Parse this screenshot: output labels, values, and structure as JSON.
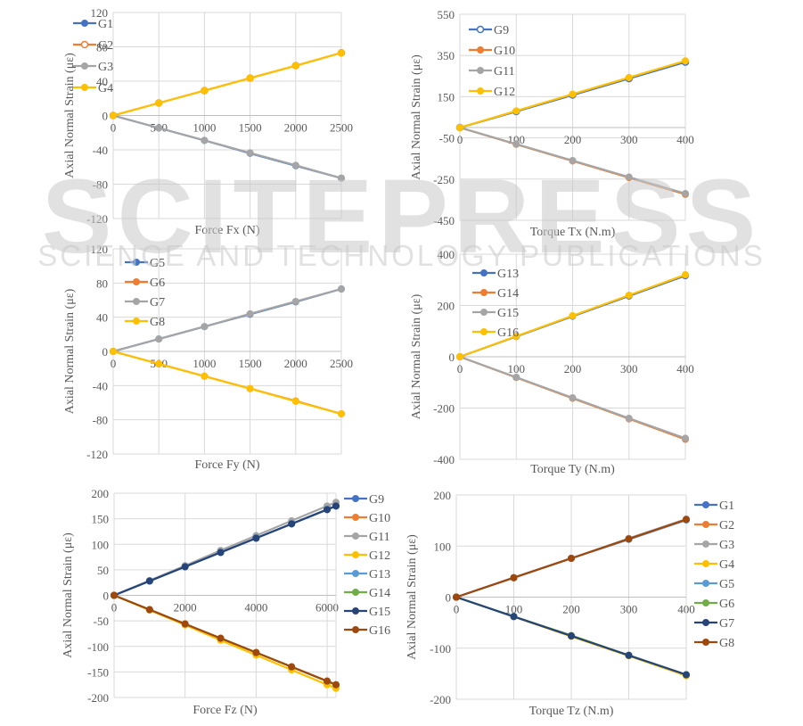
{
  "watermark": {
    "main": "SCITEPRESS",
    "sub": "SCIENCE AND TECHNOLOGY PUBLICATIONS"
  },
  "colors": {
    "blue": "#4472c4",
    "orange": "#ed7d31",
    "gray": "#a5a5a5",
    "yellow": "#ffc000",
    "lightblue": "#5b9bd5",
    "green": "#70ad47",
    "navy": "#264478",
    "brown": "#9e480e",
    "grid": "#d9d9d9"
  },
  "chart_data": [
    {
      "id": "fx",
      "type": "line",
      "xlabel": "Force Fx (N)",
      "ylabel": "Axial Normal Strain (με)",
      "xlim": [
        0,
        2500
      ],
      "ylim": [
        -120,
        120
      ],
      "x_ticks": [
        "0",
        "500",
        "1000",
        "1500",
        "2000",
        "2500"
      ],
      "x_tick_values": [
        0,
        500,
        1000,
        1500,
        2000,
        2500
      ],
      "y_ticks": [
        "120",
        "80",
        "40",
        "0",
        "-40",
        "-80",
        "-120"
      ],
      "y_tick_values": [
        120,
        80,
        40,
        0,
        -40,
        -80,
        -120
      ],
      "grid": true,
      "legend": "top-left-inside",
      "x": [
        0,
        500,
        1000,
        1500,
        2000,
        2500
      ],
      "series": [
        {
          "name": "G1",
          "color": "blue",
          "marker": "filled",
          "values": [
            0,
            -14.5,
            -29,
            -44,
            -58.5,
            -73
          ]
        },
        {
          "name": "G2",
          "color": "orange",
          "marker": "open",
          "values": [
            0,
            14.5,
            29,
            43.5,
            58,
            73
          ]
        },
        {
          "name": "G3",
          "color": "gray",
          "marker": "filled",
          "values": [
            0,
            -14.5,
            -29,
            -43.5,
            -58,
            -73
          ]
        },
        {
          "name": "G4",
          "color": "yellow",
          "marker": "filled",
          "values": [
            0,
            14.5,
            29,
            43.5,
            58,
            73
          ]
        }
      ]
    },
    {
      "id": "tx",
      "type": "line",
      "xlabel": "Torque Tx (N.m)",
      "ylabel": "Axial Normal Strain (με)",
      "xlim": [
        0,
        400
      ],
      "ylim": [
        -450,
        550
      ],
      "x_ticks": [
        "0",
        "100",
        "200",
        "300",
        "400"
      ],
      "x_tick_values": [
        0,
        100,
        200,
        300,
        400
      ],
      "y_ticks": [
        "550",
        "350",
        "150",
        "-50",
        "-250",
        "-450"
      ],
      "y_tick_values": [
        550,
        350,
        150,
        -50,
        -250,
        -450
      ],
      "grid": true,
      "legend": "top-left-inside",
      "x": [
        0,
        100,
        200,
        300,
        400
      ],
      "series": [
        {
          "name": "G9",
          "color": "blue",
          "marker": "open",
          "values": [
            0,
            78,
            158,
            238,
            318
          ]
        },
        {
          "name": "G10",
          "color": "orange",
          "marker": "filled",
          "values": [
            0,
            -81,
            -162,
            -243,
            -324
          ]
        },
        {
          "name": "G11",
          "color": "gray",
          "marker": "filled",
          "values": [
            0,
            -80,
            -160,
            -240,
            -320
          ]
        },
        {
          "name": "G12",
          "color": "yellow",
          "marker": "filled",
          "values": [
            0,
            81,
            162,
            243,
            324
          ]
        }
      ]
    },
    {
      "id": "fy",
      "type": "line",
      "xlabel": "Force Fy (N)",
      "ylabel": "Axial Normal Strain (με)",
      "xlim": [
        0,
        2500
      ],
      "ylim": [
        -120,
        120
      ],
      "x_ticks": [
        "0",
        "500",
        "1000",
        "1500",
        "2000",
        "2500"
      ],
      "x_tick_values": [
        0,
        500,
        1000,
        1500,
        2000,
        2500
      ],
      "y_ticks": [
        "120",
        "80",
        "40",
        "0",
        "-40",
        "-80",
        "-120"
      ],
      "y_tick_values": [
        120,
        80,
        40,
        0,
        -40,
        -80,
        -120
      ],
      "grid": true,
      "legend": "top-left-inside",
      "x": [
        0,
        500,
        1000,
        1500,
        2000,
        2500
      ],
      "series": [
        {
          "name": "G5",
          "color": "blue",
          "marker": "filled",
          "values": [
            0,
            14.5,
            29,
            43.5,
            58,
            73
          ]
        },
        {
          "name": "G6",
          "color": "orange",
          "marker": "filled",
          "values": [
            0,
            -14.5,
            -29,
            -43.5,
            -58,
            -73
          ]
        },
        {
          "name": "G7",
          "color": "gray",
          "marker": "filled",
          "values": [
            0,
            14.5,
            29,
            44,
            58.5,
            73
          ]
        },
        {
          "name": "G8",
          "color": "yellow",
          "marker": "filled",
          "values": [
            0,
            -14.5,
            -29,
            -43.5,
            -58.5,
            -73
          ]
        }
      ]
    },
    {
      "id": "ty",
      "type": "line",
      "xlabel": "Torque Ty (N.m)",
      "ylabel": "Axial Normal Strain (με)",
      "xlim": [
        0,
        400
      ],
      "ylim": [
        -400,
        400
      ],
      "x_ticks": [
        "0",
        "100",
        "200",
        "300",
        "400"
      ],
      "x_tick_values": [
        0,
        100,
        200,
        300,
        400
      ],
      "y_ticks": [
        "400",
        "200",
        "0",
        "-200",
        "-400"
      ],
      "y_tick_values": [
        400,
        200,
        0,
        -200,
        -400
      ],
      "grid": true,
      "legend": "top-left-inside",
      "x": [
        0,
        100,
        200,
        300,
        400
      ],
      "series": [
        {
          "name": "G13",
          "color": "blue",
          "marker": "filled",
          "values": [
            0,
            79,
            158,
            237,
            316
          ]
        },
        {
          "name": "G14",
          "color": "orange",
          "marker": "filled",
          "values": [
            0,
            -81,
            -162,
            -242,
            -322
          ]
        },
        {
          "name": "G15",
          "color": "gray",
          "marker": "filled",
          "values": [
            0,
            -80,
            -160,
            -240,
            -318
          ]
        },
        {
          "name": "G16",
          "color": "yellow",
          "marker": "filled",
          "values": [
            0,
            80,
            160,
            240,
            320
          ]
        }
      ]
    },
    {
      "id": "fz",
      "type": "line",
      "xlabel": "Force Fz (N)",
      "ylabel": "Axial Normal Strain (με)",
      "xlim": [
        0,
        6250
      ],
      "ylim": [
        -200,
        200
      ],
      "x_ticks": [
        "0",
        "2000",
        "4000",
        "6000"
      ],
      "x_tick_values": [
        0,
        2000,
        4000,
        6000
      ],
      "y_ticks": [
        "200",
        "150",
        "100",
        "50",
        "0",
        "-50",
        "-100",
        "-150",
        "-200"
      ],
      "y_tick_values": [
        200,
        150,
        100,
        50,
        0,
        -50,
        -100,
        -150,
        -200
      ],
      "grid": true,
      "legend": "right",
      "x": [
        0,
        1000,
        2000,
        3000,
        4000,
        5000,
        6000,
        6250
      ],
      "series": [
        {
          "name": "G9",
          "color": "blue",
          "marker": "filled",
          "values": [
            0,
            28,
            56,
            84,
            112,
            140,
            168,
            175
          ]
        },
        {
          "name": "G10",
          "color": "orange",
          "marker": "filled",
          "values": [
            0,
            -28,
            -56,
            -84,
            -112,
            -140,
            -168,
            -175
          ]
        },
        {
          "name": "G11",
          "color": "gray",
          "marker": "filled",
          "values": [
            0,
            29,
            58,
            88,
            117,
            146,
            175,
            182
          ]
        },
        {
          "name": "G12",
          "color": "yellow",
          "marker": "filled",
          "values": [
            0,
            -29,
            -58,
            -88,
            -117,
            -146,
            -175,
            -182
          ]
        },
        {
          "name": "G13",
          "color": "lightblue",
          "marker": "filled",
          "values": [
            0,
            28,
            56,
            84,
            112,
            140,
            168,
            175
          ]
        },
        {
          "name": "G14",
          "color": "green",
          "marker": "filled",
          "values": [
            0,
            -28,
            -56,
            -84,
            -112,
            -140,
            -168,
            -175
          ]
        },
        {
          "name": "G15",
          "color": "navy",
          "marker": "filled",
          "values": [
            0,
            28,
            56,
            84,
            112,
            140,
            168,
            175
          ]
        },
        {
          "name": "G16",
          "color": "brown",
          "marker": "filled",
          "values": [
            0,
            -28,
            -56,
            -84,
            -112,
            -140,
            -168,
            -175
          ]
        }
      ]
    },
    {
      "id": "tz",
      "type": "line",
      "xlabel": "Torque Tz (N.m)",
      "ylabel": "Axial Normal Strain (με)",
      "xlim": [
        0,
        400
      ],
      "ylim": [
        -200,
        200
      ],
      "x_ticks": [
        "0",
        "100",
        "200",
        "300",
        "400"
      ],
      "x_tick_values": [
        0,
        100,
        200,
        300,
        400
      ],
      "y_ticks": [
        "200",
        "100",
        "0",
        "-100",
        "-200"
      ],
      "y_tick_values": [
        200,
        100,
        0,
        -100,
        -200
      ],
      "grid": true,
      "legend": "right",
      "x": [
        0,
        100,
        200,
        300,
        400
      ],
      "series": [
        {
          "name": "G1",
          "color": "blue",
          "marker": "filled",
          "values": [
            0,
            -38,
            -76,
            -114,
            -152
          ]
        },
        {
          "name": "G2",
          "color": "orange",
          "marker": "filled",
          "values": [
            0,
            38,
            76,
            114,
            152
          ]
        },
        {
          "name": "G3",
          "color": "gray",
          "marker": "filled",
          "values": [
            0,
            38,
            76,
            115,
            153
          ]
        },
        {
          "name": "G4",
          "color": "yellow",
          "marker": "filled",
          "values": [
            0,
            -38.5,
            -77,
            -115,
            -154
          ]
        },
        {
          "name": "G5",
          "color": "lightblue",
          "marker": "filled",
          "values": [
            0,
            38,
            76,
            113,
            151
          ]
        },
        {
          "name": "G6",
          "color": "green",
          "marker": "filled",
          "values": [
            0,
            -38,
            -75,
            -114,
            -152
          ]
        },
        {
          "name": "G7",
          "color": "navy",
          "marker": "filled",
          "values": [
            0,
            -38,
            -76,
            -114,
            -152
          ]
        },
        {
          "name": "G8",
          "color": "brown",
          "marker": "filled",
          "values": [
            0,
            38,
            76,
            114,
            152
          ]
        }
      ]
    }
  ]
}
